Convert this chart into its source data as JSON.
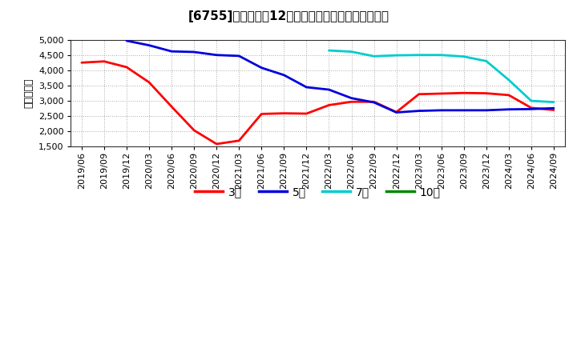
{
  "title": "[6755]　経常利益12か月移動合計の標準偏差の推移",
  "ylabel": "（百万円）",
  "ylim": [
    1500,
    5000
  ],
  "yticks": [
    1500,
    2000,
    2500,
    3000,
    3500,
    4000,
    4500,
    5000
  ],
  "bg_color": "#ffffff",
  "plot_bg_color": "#ffffff",
  "grid_color": "#aaaaaa",
  "series_order": [
    "3年",
    "5年",
    "7年",
    "10年"
  ],
  "series": {
    "3年": {
      "color": "#ff0000",
      "data": [
        [
          "2019/06",
          4250
        ],
        [
          "2019/09",
          4290
        ],
        [
          "2019/12",
          4100
        ],
        [
          "2020/03",
          3600
        ],
        [
          "2020/06",
          2800
        ],
        [
          "2020/09",
          2020
        ],
        [
          "2020/12",
          1570
        ],
        [
          "2021/03",
          1680
        ],
        [
          "2021/06",
          2560
        ],
        [
          "2021/09",
          2580
        ],
        [
          "2021/12",
          2570
        ],
        [
          "2022/03",
          2850
        ],
        [
          "2022/06",
          2960
        ],
        [
          "2022/09",
          2960
        ],
        [
          "2022/12",
          2620
        ],
        [
          "2023/03",
          3210
        ],
        [
          "2023/06",
          3230
        ],
        [
          "2023/09",
          3250
        ],
        [
          "2023/12",
          3240
        ],
        [
          "2024/03",
          3180
        ],
        [
          "2024/06",
          2760
        ],
        [
          "2024/09",
          2690
        ]
      ]
    },
    "5年": {
      "color": "#0000dd",
      "data": [
        [
          "2019/12",
          4970
        ],
        [
          "2020/03",
          4820
        ],
        [
          "2020/06",
          4620
        ],
        [
          "2020/09",
          4600
        ],
        [
          "2020/12",
          4500
        ],
        [
          "2021/03",
          4470
        ],
        [
          "2021/06",
          4080
        ],
        [
          "2021/09",
          3840
        ],
        [
          "2021/12",
          3440
        ],
        [
          "2022/03",
          3360
        ],
        [
          "2022/06",
          3080
        ],
        [
          "2022/09",
          2940
        ],
        [
          "2022/12",
          2610
        ],
        [
          "2023/03",
          2660
        ],
        [
          "2023/06",
          2680
        ],
        [
          "2023/09",
          2680
        ],
        [
          "2023/12",
          2680
        ],
        [
          "2024/03",
          2710
        ],
        [
          "2024/06",
          2720
        ],
        [
          "2024/09",
          2750
        ]
      ]
    },
    "7年": {
      "color": "#00cccc",
      "data": [
        [
          "2022/03",
          4650
        ],
        [
          "2022/06",
          4610
        ],
        [
          "2022/09",
          4460
        ],
        [
          "2022/12",
          4490
        ],
        [
          "2023/03",
          4500
        ],
        [
          "2023/06",
          4500
        ],
        [
          "2023/09",
          4450
        ],
        [
          "2023/12",
          4300
        ],
        [
          "2024/03",
          3680
        ],
        [
          "2024/06",
          2990
        ],
        [
          "2024/09",
          2950
        ]
      ]
    },
    "10年": {
      "color": "#008800",
      "data": []
    }
  },
  "xtick_labels": [
    "2019/06",
    "2019/09",
    "2019/12",
    "2020/03",
    "2020/06",
    "2020/09",
    "2020/12",
    "2021/03",
    "2021/06",
    "2021/09",
    "2021/12",
    "2022/03",
    "2022/06",
    "2022/09",
    "2022/12",
    "2023/03",
    "2023/06",
    "2023/09",
    "2023/12",
    "2024/03",
    "2024/06",
    "2024/09"
  ],
  "title_fontsize": 11,
  "tick_fontsize": 8,
  "legend_fontsize": 10,
  "ylabel_fontsize": 9,
  "linewidth": 2.0
}
